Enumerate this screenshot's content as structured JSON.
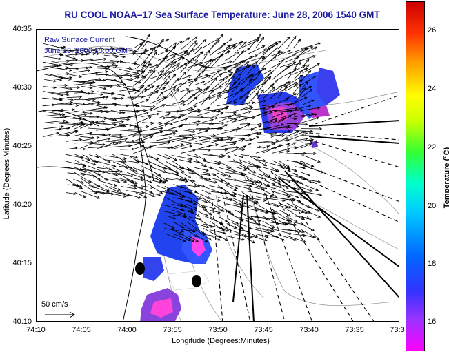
{
  "title": "RU COOL   NOAA–17  Sea Surface Temperature:  June 28, 2006 1540 GMT",
  "legend": {
    "line1": "Raw Surface Current",
    "line2": "June 28, 2006 15:00 GMT"
  },
  "axes": {
    "x_label": "Longitude (Degrees:Minutes)",
    "y_label": "Latitude (Degrees:Minutes)",
    "x_ticks": [
      "74:10",
      "74:05",
      "74:00",
      "73:55",
      "73:50",
      "73:45",
      "73:40",
      "73:35",
      "73:3"
    ],
    "y_ticks": [
      "40:35",
      "40:30",
      "40:25",
      "40:20",
      "40:15",
      "40:10"
    ]
  },
  "scale": {
    "label": "50 cm/s"
  },
  "colorbar": {
    "label": "Temperature (°C)",
    "ticks": [
      "26",
      "24",
      "22",
      "20",
      "18",
      "16"
    ]
  },
  "colors": {
    "title": "#1a1aa0",
    "land_outline": "#000000",
    "bathymetry": "#999999"
  }
}
